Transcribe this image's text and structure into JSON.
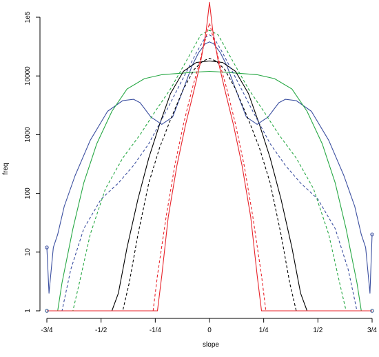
{
  "chart_data": {
    "type": "line",
    "title": "",
    "xlabel": "slope",
    "ylabel": "freq",
    "xlim": [
      -0.75,
      0.75
    ],
    "ylim": [
      1,
      100000
    ],
    "y_scale": "log",
    "grid": false,
    "legend": "none",
    "x_ticks": [
      {
        "value": -0.75,
        "label": "-3/4"
      },
      {
        "value": -0.5,
        "label": "-1/2"
      },
      {
        "value": -0.25,
        "label": "-1/4"
      },
      {
        "value": 0,
        "label": "0"
      },
      {
        "value": 0.25,
        "label": "1/4"
      },
      {
        "value": 0.5,
        "label": "1/2"
      },
      {
        "value": 0.75,
        "label": "3/4"
      }
    ],
    "y_ticks": [
      {
        "value": 1,
        "label": "1"
      },
      {
        "value": 10,
        "label": "10"
      },
      {
        "value": 100,
        "label": "100"
      },
      {
        "value": 1000,
        "label": "1000"
      },
      {
        "value": 10000,
        "label": "10000"
      },
      {
        "value": 100000,
        "label": "1e5"
      }
    ],
    "series": [
      {
        "color": "#3b4fa0",
        "style": "solid",
        "x": [
          -0.75,
          -0.74,
          -0.72,
          -0.7,
          -0.67,
          -0.62,
          -0.55,
          -0.47,
          -0.4,
          -0.35,
          -0.32,
          -0.27,
          -0.22,
          -0.17,
          -0.12,
          -0.08,
          -0.05,
          -0.02,
          0,
          0.02,
          0.05,
          0.08,
          0.12,
          0.17,
          0.22,
          0.27,
          0.32,
          0.35,
          0.4,
          0.47,
          0.55,
          0.62,
          0.67,
          0.7,
          0.72,
          0.74,
          0.75
        ],
        "y": [
          12,
          2,
          12,
          20,
          60,
          200,
          800,
          2500,
          3800,
          4000,
          3500,
          2000,
          1500,
          2000,
          6000,
          15000,
          25000,
          35000,
          38000,
          35000,
          25000,
          15000,
          6000,
          2000,
          1500,
          2000,
          3500,
          4000,
          3800,
          2500,
          800,
          200,
          60,
          20,
          12,
          2,
          20
        ]
      },
      {
        "color": "#27a844",
        "style": "solid",
        "x": [
          -0.75,
          -0.7,
          -0.68,
          -0.63,
          -0.58,
          -0.52,
          -0.45,
          -0.38,
          -0.3,
          -0.22,
          -0.15,
          -0.08,
          -0.03,
          0,
          0.03,
          0.08,
          0.15,
          0.22,
          0.3,
          0.38,
          0.45,
          0.52,
          0.58,
          0.63,
          0.68,
          0.7,
          0.75
        ],
        "y": [
          1,
          1,
          3,
          25,
          150,
          700,
          2500,
          6000,
          9000,
          10500,
          11000,
          11500,
          11800,
          12000,
          11800,
          11500,
          11000,
          10500,
          9000,
          6000,
          2500,
          700,
          150,
          25,
          3,
          1,
          1
        ]
      },
      {
        "color": "#000000",
        "style": "solid",
        "x": [
          -0.75,
          -0.45,
          -0.42,
          -0.38,
          -0.33,
          -0.28,
          -0.23,
          -0.18,
          -0.12,
          -0.06,
          0,
          0.06,
          0.12,
          0.18,
          0.23,
          0.28,
          0.33,
          0.38,
          0.42,
          0.45,
          0.75
        ],
        "y": [
          1,
          1,
          2,
          12,
          80,
          400,
          1500,
          5000,
          12000,
          17000,
          18000,
          17000,
          12000,
          5000,
          1500,
          400,
          80,
          12,
          2,
          1,
          1
        ]
      },
      {
        "color": "#000000",
        "style": "dashed",
        "x": [
          -0.75,
          -0.4,
          -0.37,
          -0.33,
          -0.28,
          -0.23,
          -0.18,
          -0.12,
          -0.07,
          -0.03,
          0,
          0.03,
          0.07,
          0.12,
          0.18,
          0.23,
          0.28,
          0.33,
          0.37,
          0.4,
          0.75
        ],
        "y": [
          1,
          1,
          3,
          20,
          150,
          600,
          1800,
          6000,
          13000,
          18000,
          20000,
          18000,
          13000,
          6000,
          1800,
          600,
          150,
          20,
          3,
          1,
          1
        ]
      },
      {
        "color": "#3b4fa0",
        "style": "dashed",
        "x": [
          -0.75,
          -0.68,
          -0.64,
          -0.58,
          -0.5,
          -0.42,
          -0.35,
          -0.28,
          -0.2,
          -0.13,
          -0.06,
          -0.02,
          0,
          0.02,
          0.06,
          0.13,
          0.2,
          0.28,
          0.35,
          0.42,
          0.5,
          0.58,
          0.64,
          0.68,
          0.75
        ],
        "y": [
          1,
          1,
          5,
          25,
          80,
          150,
          300,
          700,
          2500,
          8000,
          25000,
          45000,
          50000,
          45000,
          25000,
          8000,
          2500,
          700,
          300,
          150,
          80,
          25,
          5,
          1,
          1
        ]
      },
      {
        "color": "#27a844",
        "style": "dashed",
        "x": [
          -0.75,
          -0.63,
          -0.6,
          -0.55,
          -0.48,
          -0.4,
          -0.32,
          -0.25,
          -0.18,
          -0.1,
          -0.04,
          0,
          0.04,
          0.1,
          0.18,
          0.25,
          0.32,
          0.4,
          0.48,
          0.55,
          0.6,
          0.63,
          0.75
        ],
        "y": [
          1,
          1,
          3,
          20,
          120,
          400,
          1000,
          2500,
          6000,
          20000,
          50000,
          60000,
          50000,
          20000,
          6000,
          2500,
          1000,
          400,
          120,
          20,
          3,
          1,
          1
        ]
      },
      {
        "color": "#e8232a",
        "style": "solid",
        "x": [
          -0.75,
          -0.24,
          -0.22,
          -0.19,
          -0.15,
          -0.11,
          -0.07,
          -0.04,
          -0.015,
          0,
          0.015,
          0.04,
          0.07,
          0.11,
          0.15,
          0.19,
          0.22,
          0.24,
          0.75
        ],
        "y": [
          1,
          1,
          4,
          40,
          300,
          1500,
          6000,
          18000,
          60000,
          180000,
          60000,
          18000,
          6000,
          1500,
          300,
          40,
          4,
          1,
          1
        ]
      },
      {
        "color": "#e8232a",
        "style": "dashed",
        "x": [
          -0.75,
          -0.26,
          -0.24,
          -0.2,
          -0.16,
          -0.12,
          -0.08,
          -0.05,
          -0.02,
          0,
          0.02,
          0.05,
          0.08,
          0.12,
          0.16,
          0.2,
          0.24,
          0.26,
          0.75
        ],
        "y": [
          1,
          1,
          4,
          40,
          300,
          1500,
          6000,
          15000,
          40000,
          80000,
          40000,
          15000,
          6000,
          1500,
          300,
          40,
          4,
          1,
          1
        ]
      }
    ],
    "endpoint_markers": [
      {
        "color": "#3b4fa0",
        "x": -0.75,
        "y": 12
      },
      {
        "color": "#3b4fa0",
        "x": 0.75,
        "y": 20
      },
      {
        "color": "#27a844",
        "x": -0.75,
        "y": 1
      },
      {
        "color": "#27a844",
        "x": 0.75,
        "y": 1
      },
      {
        "color": "#3b4fa0",
        "x": -0.75,
        "y": 1
      },
      {
        "color": "#3b4fa0",
        "x": 0.75,
        "y": 1
      }
    ]
  }
}
